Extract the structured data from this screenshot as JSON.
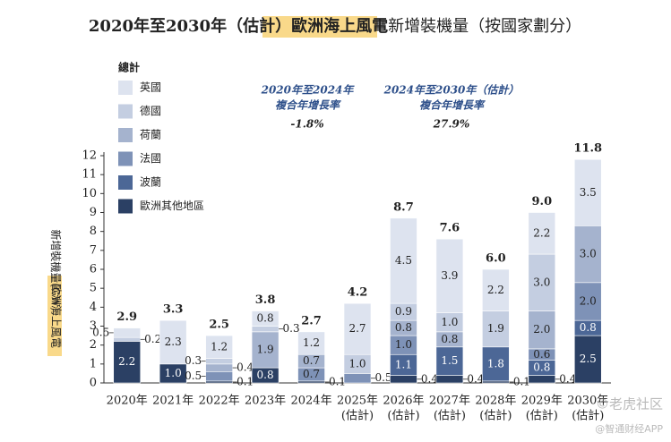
{
  "chart_data": {
    "type": "stacked_bar",
    "title": [
      "2020年至2030年（估計）",
      "歐洲海上風電",
      "新增裝機量（按國家劃分）"
    ],
    "y_label": [
      "歐洲海上風電",
      "新增裝機量(GW)"
    ],
    "legend_title": "總計",
    "categories": [
      [
        "2020年"
      ],
      [
        "2021年"
      ],
      [
        "2022年"
      ],
      [
        "2023年"
      ],
      [
        "2024年"
      ],
      [
        "2025年",
        "(估計)"
      ],
      [
        "2026年",
        "(估計)"
      ],
      [
        "2027年",
        "(估計)"
      ],
      [
        "2028年",
        "(估計)"
      ],
      [
        "2029年",
        "(估計)"
      ],
      [
        "2030年",
        "(估計)"
      ]
    ],
    "series": [
      {
        "name": "歐洲其他地區",
        "color": "#2b4064",
        "values": [
          2.2,
          1.0,
          0.1,
          0.8,
          0.1,
          null,
          0.4,
          0.4,
          0.1,
          0.4,
          2.5
        ],
        "value_labels": [
          "2.2",
          "1.0",
          "0.1",
          "0.8",
          "0.1",
          null,
          "0.4",
          "0.4",
          "0.1",
          "0.4",
          "2.5"
        ]
      },
      {
        "name": "波蘭",
        "color": "#4c6796",
        "values": [
          null,
          null,
          null,
          null,
          null,
          null,
          1.1,
          1.5,
          1.8,
          0.8,
          0.8
        ],
        "value_labels": [
          null,
          null,
          null,
          null,
          null,
          null,
          "1.1",
          "1.5",
          "1.8",
          "0.8",
          "0.8"
        ]
      },
      {
        "name": "法國",
        "color": "#7e92b7",
        "values": [
          null,
          null,
          0.5,
          null,
          0.7,
          0.5,
          1.0,
          null,
          null,
          0.6,
          2.0
        ],
        "value_labels": [
          null,
          null,
          "0.5",
          null,
          "0.7",
          "0.5",
          "1.0",
          null,
          null,
          "0.6",
          "2.0"
        ]
      },
      {
        "name": "荷蘭",
        "color": "#a5b3ce",
        "values": [
          null,
          null,
          0.4,
          1.9,
          0.7,
          null,
          0.8,
          0.8,
          null,
          2.0,
          3.0
        ],
        "value_labels": [
          null,
          null,
          "0.4",
          "1.9",
          "0.7",
          null,
          "0.8",
          "0.8",
          null,
          "2.0",
          "3.0"
        ]
      },
      {
        "name": "德國",
        "color": "#c4cee1",
        "values": [
          0.2,
          null,
          0.3,
          0.3,
          null,
          1.0,
          0.9,
          1.0,
          1.9,
          3.0,
          null
        ],
        "value_labels": [
          "0.2",
          null,
          "0.3",
          "0.3",
          null,
          "1.0",
          "0.9",
          "1.0",
          "1.9",
          "3.0",
          null
        ]
      },
      {
        "name": "英國",
        "color": "#dde3ef",
        "values": [
          0.5,
          2.3,
          1.2,
          0.8,
          1.2,
          2.7,
          4.5,
          3.9,
          2.2,
          2.2,
          3.5
        ],
        "value_labels": [
          "0.5",
          "2.3",
          "1.2",
          "0.8",
          "1.2",
          "2.7",
          "4.5",
          "3.9",
          "2.2",
          "2.2",
          "3.5"
        ]
      }
    ],
    "totals": [
      2.9,
      3.3,
      2.5,
      3.8,
      2.7,
      4.2,
      8.7,
      7.6,
      6.0,
      9.0,
      11.8
    ],
    "total_labels": [
      "2.9",
      "3.3",
      "2.5",
      "3.8",
      "2.7",
      "4.2",
      "8.7",
      "7.6",
      "6.0",
      "9.0",
      "11.8"
    ],
    "annotations": [
      {
        "lines": [
          "2020年至2024年",
          "複合年增長率"
        ],
        "value": "-1.8%"
      },
      {
        "lines": [
          "2024年至2030年（估計）",
          "複合年增長率"
        ],
        "value": "27.9%"
      }
    ],
    "ylim": [
      0,
      12
    ],
    "yticks": [
      0,
      1,
      2,
      3,
      4,
      5,
      6,
      7,
      8,
      9,
      10,
      11,
      12
    ],
    "watermark": [
      "©老虎社区",
      "@智通财经APP"
    ]
  }
}
